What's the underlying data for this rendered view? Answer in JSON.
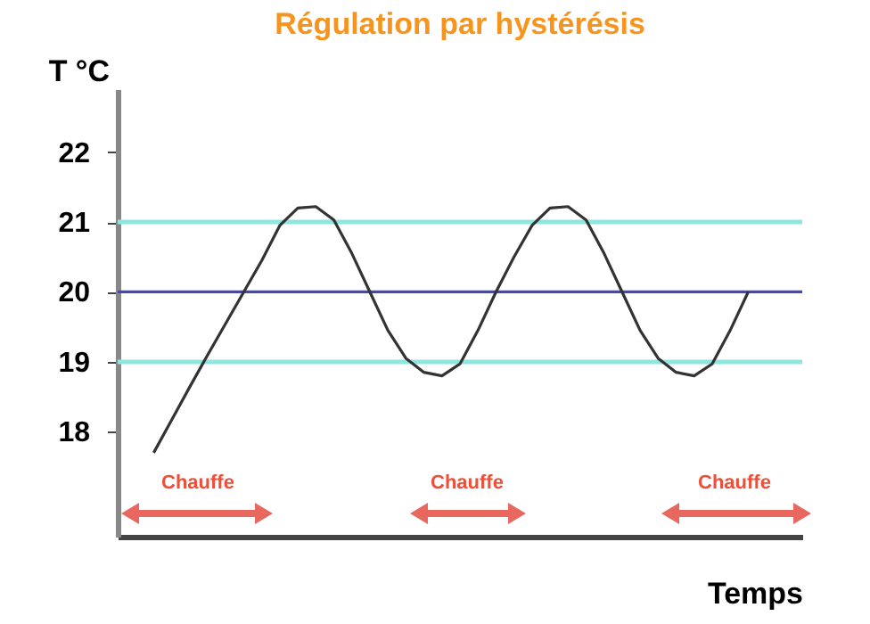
{
  "chart_data": {
    "type": "line",
    "title": "Régulation par hystérésis",
    "xlabel": "Temps",
    "ylabel": "T °C",
    "categories": [
      null,
      null,
      null,
      null,
      null,
      null,
      null,
      null,
      null,
      null,
      null,
      null,
      null,
      null,
      null,
      null,
      null,
      null,
      null,
      null,
      null,
      null,
      null,
      null,
      null,
      null,
      null,
      null,
      null,
      null,
      null,
      null,
      null,
      null,
      null,
      null,
      null,
      null,
      null
    ],
    "series": [
      {
        "color": "#333333",
        "values": [
          null,
          null,
          17.7,
          18.17,
          18.64,
          19.1,
          19.55,
          20.0,
          20.45,
          20.95,
          21.2,
          21.22,
          21.03,
          20.55,
          20.0,
          19.45,
          19.05,
          18.85,
          18.8,
          18.97,
          19.45,
          20.0,
          20.5,
          20.95,
          21.2,
          21.22,
          21.03,
          20.55,
          20.0,
          19.45,
          19.05,
          18.85,
          18.8,
          18.97,
          19.45,
          20.0,
          null,
          null,
          null
        ]
      }
    ],
    "ylim": [
      16.5,
      22.9
    ],
    "yticks": [
      18,
      19,
      20,
      21,
      22
    ],
    "tick_labels": "y",
    "grid": false,
    "ref_lines": [
      {
        "axis": "y",
        "value": 21,
        "color": "#8fe6de"
      },
      {
        "axis": "y",
        "value": 20,
        "color": "#4b4b9c"
      },
      {
        "axis": "y",
        "value": 19,
        "color": "#8fe6de"
      }
    ],
    "annotations": [
      "Chauffe",
      "Chauffe",
      "Chauffe"
    ]
  }
}
